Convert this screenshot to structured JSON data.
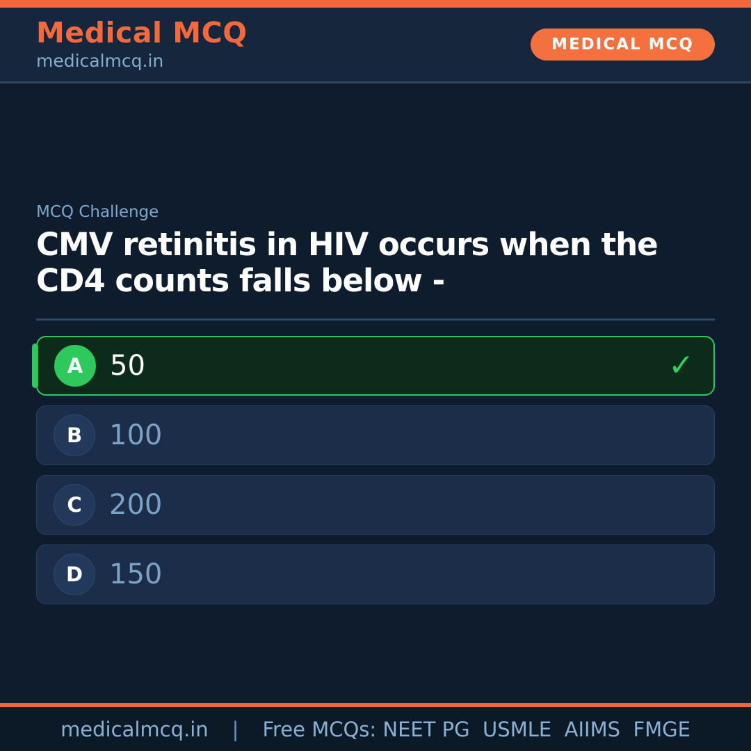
{
  "header": {
    "title": "Medical MCQ",
    "subtitle": "medicalmcq.in",
    "badge": "MEDICAL MCQ"
  },
  "question": {
    "label": "MCQ Challenge",
    "text": "CMV retinitis in HIV occurs when the CD4 counts falls below -"
  },
  "options": [
    {
      "letter": "A",
      "text": "50",
      "correct": true
    },
    {
      "letter": "B",
      "text": "100",
      "correct": false
    },
    {
      "letter": "C",
      "text": "200",
      "correct": false
    },
    {
      "letter": "D",
      "text": "150",
      "correct": false
    }
  ],
  "icons": {
    "check": "✓"
  },
  "footer": {
    "site": "medicalmcq.in",
    "separator": "|",
    "tagline": "Free MCQs: NEET PG  USMLE  AIIMS  FMGE"
  },
  "colors": {
    "accent_orange": "#F2683C",
    "correct_green": "#2EC95C",
    "header_bg": "#16263C",
    "body_bg": "#0E1C2E",
    "card_bg": "#1B2D48",
    "correct_card_bg": "#0D2B1B",
    "light_blue_text": "#85ADCE"
  }
}
